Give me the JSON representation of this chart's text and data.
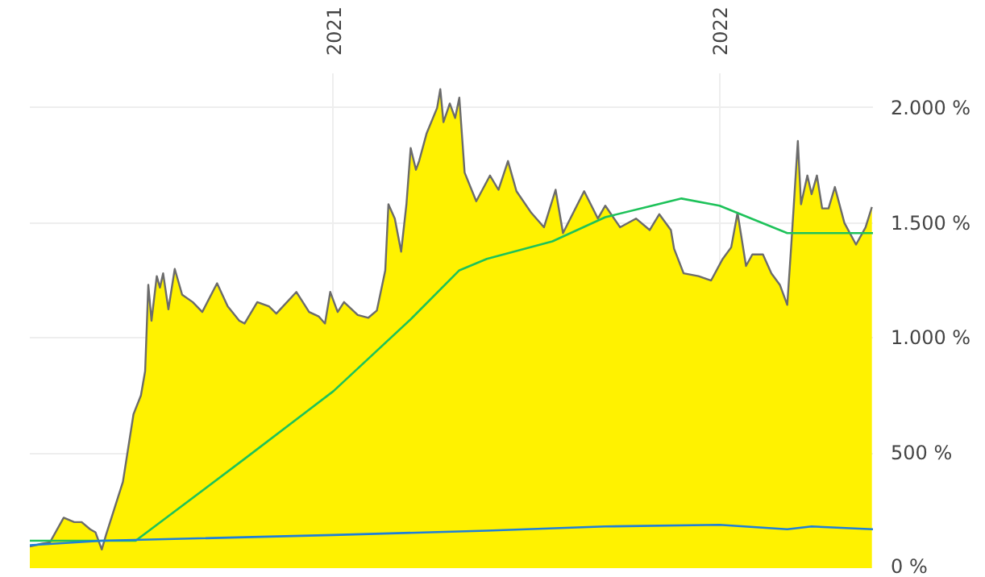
{
  "chart_data": {
    "type": "line",
    "xlim": [
      "2020-03-20",
      "2022-05-26"
    ],
    "xticks": [
      "2021",
      "2022"
    ],
    "ylim": [
      0,
      2150
    ],
    "yticks": [
      {
        "value": 0,
        "label": "0 %"
      },
      {
        "value": 500,
        "label": "500 %"
      },
      {
        "value": 1000,
        "label": "1.000 %"
      },
      {
        "value": 1500,
        "label": "1.500 %"
      },
      {
        "value": 2000,
        "label": "2.000 %"
      }
    ],
    "grid": true,
    "series": [
      {
        "type": "area",
        "color": "#fff200",
        "x": [
          "2020-03-20",
          "2020-03-31",
          "2020-04-08",
          "2020-04-21",
          "2020-05-01",
          "2020-05-08",
          "2020-05-16",
          "2020-05-21",
          "2020-05-27",
          "2020-05-31",
          "2020-06-16",
          "2020-06-26",
          "2020-07-03",
          "2020-07-07",
          "2020-07-10",
          "2020-07-13",
          "2020-07-18",
          "2020-07-21",
          "2020-07-24",
          "2020-07-29",
          "2020-08-04",
          "2020-08-11",
          "2020-08-21",
          "2020-08-30",
          "2020-09-13",
          "2020-09-23",
          "2020-10-04",
          "2020-10-09",
          "2020-10-21",
          "2020-11-01",
          "2020-11-08",
          "2020-11-27",
          "2020-12-09",
          "2020-12-18",
          "2020-12-24",
          "2020-12-29",
          "2021-01-05",
          "2021-01-11",
          "2021-01-24",
          "2021-02-03",
          "2021-02-11",
          "2021-02-19",
          "2021-02-22",
          "2021-02-28",
          "2021-03-06",
          "2021-03-11",
          "2021-03-15",
          "2021-03-20",
          "2021-03-23",
          "2021-03-30",
          "2021-04-09",
          "2021-04-12",
          "2021-04-15",
          "2021-04-21",
          "2021-04-26",
          "2021-04-30",
          "2021-05-05",
          "2021-05-16",
          "2021-05-29",
          "2021-06-06",
          "2021-06-15",
          "2021-06-23",
          "2021-07-07",
          "2021-07-19",
          "2021-07-30",
          "2021-08-06",
          "2021-08-26",
          "2021-09-08",
          "2021-09-15",
          "2021-09-29",
          "2021-10-14",
          "2021-10-27",
          "2021-11-05",
          "2021-11-16",
          "2021-11-19",
          "2021-11-28",
          "2021-12-12",
          "2021-12-24",
          "2022-01-04",
          "2022-01-12",
          "2022-01-18",
          "2022-01-26",
          "2022-02-01",
          "2022-02-11",
          "2022-02-19",
          "2022-02-27",
          "2022-03-06",
          "2022-03-10",
          "2022-03-16",
          "2022-03-19",
          "2022-03-25",
          "2022-03-29",
          "2022-04-03",
          "2022-04-08",
          "2022-04-14",
          "2022-04-20",
          "2022-04-29",
          "2022-05-10",
          "2022-05-19",
          "2022-05-25"
        ],
        "values": [
          94,
          106,
          112,
          219,
          200,
          200,
          169,
          156,
          81,
          144,
          375,
          669,
          750,
          856,
          1231,
          1075,
          1269,
          1219,
          1281,
          1125,
          1300,
          1188,
          1156,
          1113,
          1238,
          1138,
          1075,
          1063,
          1156,
          1138,
          1106,
          1200,
          1113,
          1094,
          1063,
          1200,
          1113,
          1156,
          1100,
          1088,
          1119,
          1294,
          1581,
          1519,
          1375,
          1581,
          1825,
          1731,
          1769,
          1888,
          2000,
          2081,
          1938,
          2019,
          1956,
          2044,
          1719,
          1594,
          1706,
          1644,
          1769,
          1638,
          1544,
          1481,
          1644,
          1456,
          1638,
          1519,
          1575,
          1481,
          1519,
          1469,
          1538,
          1469,
          1388,
          1281,
          1269,
          1250,
          1344,
          1394,
          1544,
          1313,
          1363,
          1363,
          1281,
          1231,
          1144,
          1419,
          1856,
          1581,
          1706,
          1625,
          1706,
          1563,
          1563,
          1656,
          1500,
          1406,
          1481,
          1569
        ]
      },
      {
        "color": "#1ec25a",
        "x": [
          "2020-03-20",
          "2020-06-28",
          "2020-10-09",
          "2021-01-01",
          "2021-03-15",
          "2021-04-30",
          "2021-05-26",
          "2021-07-27",
          "2021-09-15",
          "2021-11-26",
          "2022-01-01",
          "2022-03-06",
          "2022-05-26"
        ],
        "values": [
          119,
          119,
          475,
          769,
          1081,
          1294,
          1344,
          1420,
          1525,
          1606,
          1575,
          1456,
          1456
        ]
      },
      {
        "color": "#1e7fd8",
        "x": [
          "2020-03-20",
          "2020-05-27",
          "2021-01-01",
          "2021-05-26",
          "2021-09-15",
          "2022-01-01",
          "2022-03-06",
          "2022-03-29",
          "2022-05-26"
        ],
        "values": [
          100,
          119,
          144,
          163,
          181,
          188,
          169,
          181,
          169
        ]
      }
    ]
  }
}
